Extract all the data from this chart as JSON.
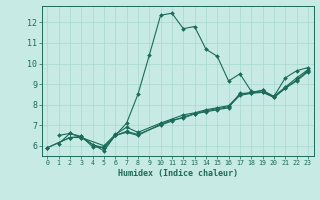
{
  "title": "",
  "xlabel": "Humidex (Indice chaleur)",
  "ylabel": "",
  "xlim": [
    -0.5,
    23.5
  ],
  "ylim": [
    5.5,
    12.8
  ],
  "yticks": [
    6,
    7,
    8,
    9,
    10,
    11,
    12
  ],
  "xticks": [
    0,
    1,
    2,
    3,
    4,
    5,
    6,
    7,
    8,
    9,
    10,
    11,
    12,
    13,
    14,
    15,
    16,
    17,
    18,
    19,
    20,
    21,
    22,
    23
  ],
  "bg_color": "#c8eae4",
  "line_color": "#1a6b5a",
  "grid_color": "#a8d8ce",
  "lines": [
    {
      "x": [
        1,
        2,
        3,
        5,
        6,
        7,
        8,
        9,
        10,
        11,
        12,
        13,
        14,
        15,
        16,
        17,
        18,
        19,
        20,
        21,
        22,
        23
      ],
      "y": [
        6.5,
        6.6,
        6.4,
        5.75,
        6.5,
        7.1,
        8.5,
        10.4,
        12.35,
        12.45,
        11.7,
        11.8,
        10.7,
        10.35,
        9.15,
        9.5,
        8.65,
        8.6,
        8.4,
        9.3,
        9.65,
        9.8
      ]
    },
    {
      "x": [
        1,
        2,
        3,
        4,
        5,
        6,
        7,
        8,
        10,
        11,
        12,
        13,
        14,
        15,
        16,
        17,
        18,
        19,
        20,
        21,
        22,
        23
      ],
      "y": [
        6.1,
        6.6,
        6.45,
        6.05,
        5.9,
        6.5,
        6.65,
        6.5,
        7.05,
        7.25,
        7.35,
        7.55,
        7.65,
        7.75,
        7.85,
        8.55,
        8.55,
        8.7,
        8.4,
        8.85,
        9.3,
        9.7
      ]
    },
    {
      "x": [
        0,
        2,
        3,
        4,
        5,
        6,
        7,
        8,
        10,
        11,
        12,
        13,
        14,
        15,
        16,
        17,
        18,
        19,
        20,
        21,
        22,
        23
      ],
      "y": [
        5.9,
        6.4,
        6.45,
        5.95,
        5.9,
        6.5,
        6.7,
        6.55,
        7.0,
        7.2,
        7.4,
        7.55,
        7.7,
        7.8,
        7.9,
        8.45,
        8.55,
        8.6,
        8.35,
        8.8,
        9.15,
        9.6
      ]
    },
    {
      "x": [
        0,
        2,
        3,
        5,
        6,
        7,
        8,
        10,
        12,
        13,
        14,
        15,
        16,
        17,
        18,
        19,
        20,
        21,
        22,
        23
      ],
      "y": [
        5.9,
        6.4,
        6.4,
        6.0,
        6.55,
        6.9,
        6.65,
        7.1,
        7.5,
        7.6,
        7.75,
        7.85,
        7.95,
        8.5,
        8.6,
        8.7,
        8.35,
        8.8,
        9.2,
        9.65
      ]
    }
  ]
}
